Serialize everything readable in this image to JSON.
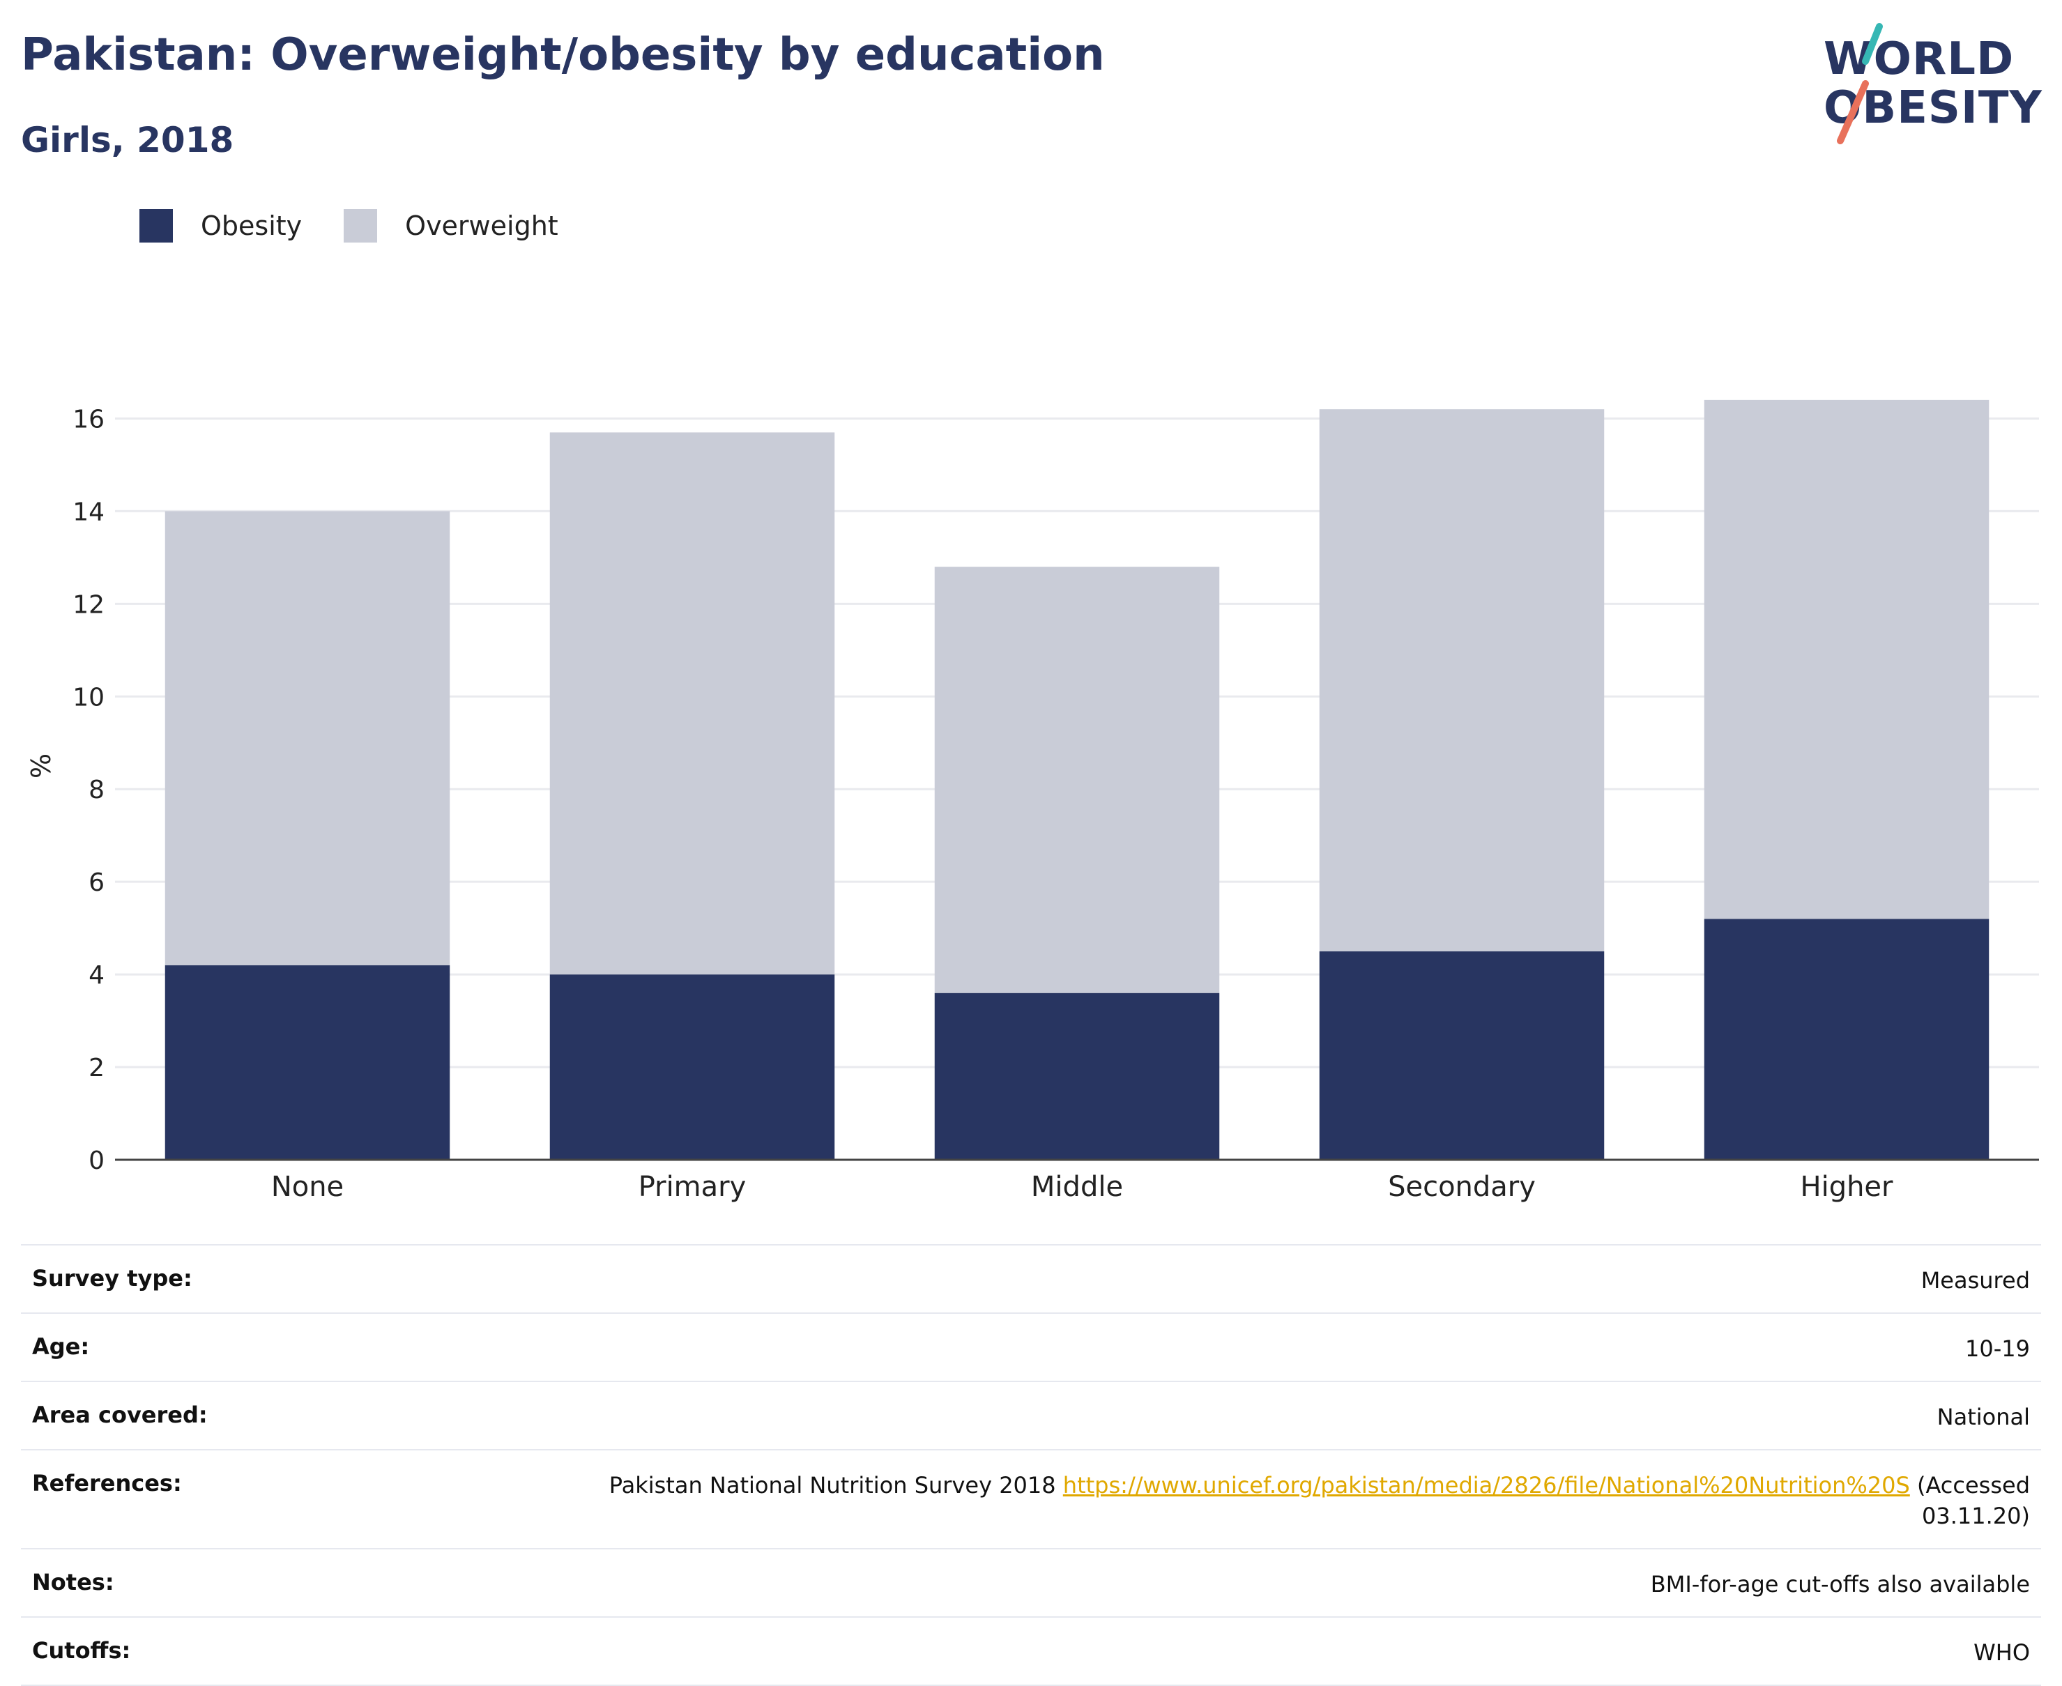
{
  "header": {
    "title": "Pakistan: Overweight/obesity by education",
    "subtitle": "Girls, 2018"
  },
  "logo": {
    "line1": "WORLD",
    "line2": "OBESITY",
    "slash_colors": [
      "#36b7b4",
      "#e8715b"
    ]
  },
  "colors": {
    "obesity": "#283561",
    "overweight": "#c9ccd7",
    "axis": "#444444",
    "grid": "#e9eaee",
    "link": "#e0a800"
  },
  "chart_data": {
    "type": "bar",
    "stacked": true,
    "categories": [
      "None",
      "Primary",
      "Middle",
      "Secondary",
      "Higher"
    ],
    "series": [
      {
        "name": "Obesity",
        "values": [
          4.2,
          4.0,
          3.6,
          4.5,
          5.2
        ]
      },
      {
        "name": "Overweight",
        "values": [
          9.8,
          11.7,
          9.2,
          11.7,
          11.2
        ]
      }
    ],
    "ylabel": "%",
    "ylim": [
      0,
      17
    ],
    "yticks": [
      0,
      2,
      4,
      6,
      8,
      10,
      12,
      14,
      16
    ],
    "grid": true,
    "legend": "top-left"
  },
  "meta": [
    {
      "label": "Survey type:",
      "value": "Measured"
    },
    {
      "label": "Age:",
      "value": "10-19"
    },
    {
      "label": "Area covered:",
      "value": "National"
    },
    {
      "label": "References:",
      "value_prefix": "Pakistan National Nutrition Survey 2018 ",
      "link": "https://www.unicef.org/pakistan/media/2826/file/National%20Nutrition%20S",
      "value_suffix": " (Accessed 03.11.20)"
    },
    {
      "label": "Notes:",
      "value": "BMI-for-age cut-offs also available"
    },
    {
      "label": "Cutoffs:",
      "value": "WHO"
    }
  ]
}
